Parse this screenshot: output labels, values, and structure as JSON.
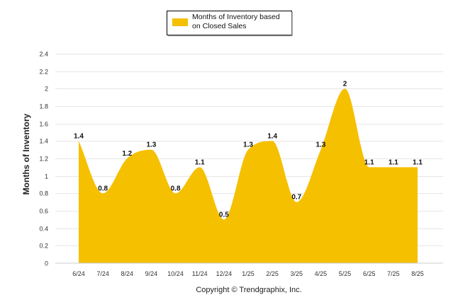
{
  "chart_data": {
    "type": "area",
    "title": "",
    "ylabel": "Months of Inventory",
    "xlabel": "",
    "categories": [
      "6/24",
      "7/24",
      "8/24",
      "9/24",
      "10/24",
      "11/24",
      "12/24",
      "1/25",
      "2/25",
      "3/25",
      "4/25",
      "5/25",
      "6/25",
      "7/25",
      "8/25"
    ],
    "series": [
      {
        "name": "Months of Inventory based on Closed Sales",
        "values": [
          1.4,
          0.8,
          1.2,
          1.3,
          0.8,
          1.1,
          0.5,
          1.3,
          1.4,
          0.7,
          1.3,
          2,
          1.1,
          1.1,
          1.1
        ],
        "color": "#F5C000"
      }
    ],
    "ylim": [
      0,
      2.4
    ],
    "yticks": [
      "0",
      "0.2",
      "0.4",
      "0.6",
      "0.8",
      "1",
      "1.2",
      "1.4",
      "1.6",
      "1.8",
      "2",
      "2.2",
      "2.4"
    ],
    "grid": true,
    "legend_position": "top-center",
    "data_labels": true
  },
  "legend": {
    "line1": "Months of Inventory based",
    "line2": "on Closed Sales"
  },
  "footer": {
    "copyright": "Copyright © Trendgraphix, Inc."
  },
  "colors": {
    "area": "#F5C000",
    "grid": "#E6E6E6"
  }
}
